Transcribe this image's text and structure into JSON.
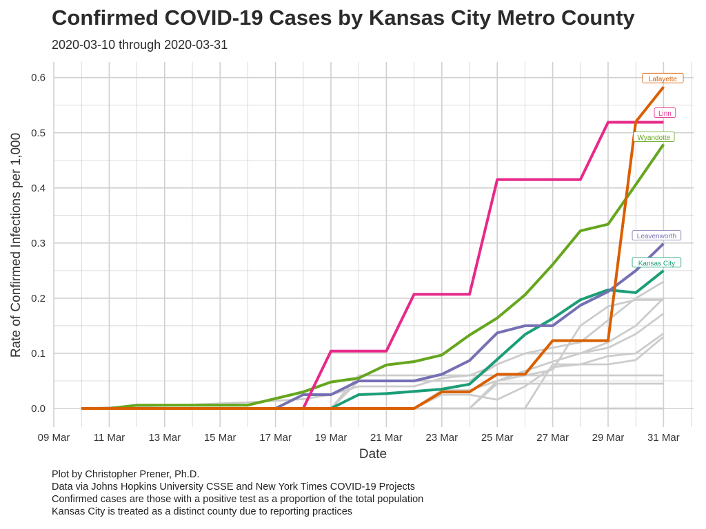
{
  "title": "Confirmed COVID-19 Cases by Kansas City Metro County",
  "subtitle": "2020-03-10 through 2020-03-31",
  "caption": [
    "Plot by Christopher Prener, Ph.D.",
    "Data via Johns Hopkins University CSSE and New York Times COVID-19 Projects",
    "Confirmed cases are those with a positive test as a proportion of the total population",
    "Kansas City is treated as a distinct county due to reporting practices"
  ],
  "chart_data": {
    "type": "line",
    "xlabel": "Date",
    "ylabel": "Rate of Confirmed Infections per 1,000",
    "x_tick_labels": [
      "09 Mar",
      "11 Mar",
      "13 Mar",
      "15 Mar",
      "17 Mar",
      "19 Mar",
      "21 Mar",
      "23 Mar",
      "25 Mar",
      "27 Mar",
      "29 Mar",
      "31 Mar"
    ],
    "y_tick_labels": [
      "0.0",
      "0.1",
      "0.2",
      "0.3",
      "0.4",
      "0.5",
      "0.6"
    ],
    "xlim": [
      "2020-03-09",
      "2020-03-31"
    ],
    "ylim": [
      0,
      0.6
    ],
    "grid": true,
    "legend": "direct labels at line ends",
    "x": [
      "2020-03-10",
      "2020-03-11",
      "2020-03-12",
      "2020-03-13",
      "2020-03-14",
      "2020-03-15",
      "2020-03-16",
      "2020-03-17",
      "2020-03-18",
      "2020-03-19",
      "2020-03-20",
      "2020-03-21",
      "2020-03-22",
      "2020-03-23",
      "2020-03-24",
      "2020-03-25",
      "2020-03-26",
      "2020-03-27",
      "2020-03-28",
      "2020-03-29",
      "2020-03-30",
      "2020-03-31"
    ],
    "series": [
      {
        "name": "Lafayette",
        "color": "#d95f02",
        "values": [
          0,
          0,
          0,
          0,
          0,
          0,
          0,
          0,
          0,
          0,
          0,
          0,
          0,
          0.03,
          0.03,
          0.062,
          0.062,
          0.123,
          0.123,
          0.123,
          0.52,
          0.583
        ]
      },
      {
        "name": "Linn",
        "color": "#e7298a",
        "values": [
          0,
          0,
          0,
          0,
          0,
          0,
          0,
          0,
          0,
          0.104,
          0.104,
          0.104,
          0.207,
          0.207,
          0.207,
          0.415,
          0.415,
          0.415,
          0.415,
          0.519,
          0.519,
          0.519
        ]
      },
      {
        "name": "Wyandotte",
        "color": "#66a61e",
        "values": [
          0,
          0,
          0.006,
          0.006,
          0.006,
          0.006,
          0.006,
          0.018,
          0.03,
          0.048,
          0.055,
          0.079,
          0.085,
          0.097,
          0.133,
          0.164,
          0.206,
          0.261,
          0.322,
          0.334,
          0.406,
          0.479
        ]
      },
      {
        "name": "Leavenworth",
        "color": "#7570b3",
        "values": [
          0,
          0,
          0,
          0,
          0,
          0,
          0,
          0,
          0.025,
          0.025,
          0.05,
          0.05,
          0.05,
          0.062,
          0.087,
          0.137,
          0.15,
          0.15,
          0.187,
          0.212,
          0.25,
          0.299
        ]
      },
      {
        "name": "Kansas City",
        "color": "#1b9e77",
        "values": [
          0,
          0,
          0,
          0,
          0,
          0,
          0,
          0,
          0,
          0,
          0.025,
          0.027,
          0.031,
          0.035,
          0.044,
          0.089,
          0.134,
          0.163,
          0.197,
          0.215,
          0.21,
          0.25
        ]
      },
      {
        "color": "#cccccc",
        "values": [
          0,
          0,
          0,
          0,
          0,
          0,
          0,
          0,
          0,
          0,
          0,
          0,
          0,
          0,
          0,
          0,
          0,
          0,
          0,
          0,
          0,
          0
        ]
      },
      {
        "color": "#cccccc",
        "values": [
          0,
          0,
          0,
          0,
          0,
          0,
          0,
          0,
          0,
          0,
          0,
          0,
          0,
          0,
          0,
          0.045,
          0.045,
          0.045,
          0.045,
          0.045,
          0.045,
          0.045
        ]
      },
      {
        "color": "#cccccc",
        "values": [
          0,
          0,
          0,
          0,
          0,
          0,
          0,
          0,
          0,
          0,
          0.06,
          0.06,
          0.06,
          0.06,
          0.06,
          0.06,
          0.06,
          0.06,
          0.06,
          0.06,
          0.06,
          0.06
        ]
      },
      {
        "color": "#cccccc",
        "values": [
          0,
          0,
          0,
          0,
          0,
          0,
          0,
          0,
          0,
          0,
          0,
          0,
          0,
          0,
          0,
          0,
          0,
          0.08,
          0.08,
          0.08,
          0.088,
          0.13
        ]
      },
      {
        "color": "#cccccc",
        "values": [
          0,
          0,
          0,
          0,
          0,
          0,
          0,
          0,
          0,
          0,
          0,
          0,
          0,
          0.025,
          0.025,
          0.016,
          0.04,
          0.075,
          0.08,
          0.095,
          0.1,
          0.136
        ]
      },
      {
        "color": "#cccccc",
        "values": [
          0,
          0,
          0,
          0,
          0,
          0,
          0,
          0,
          0,
          0,
          0,
          0,
          0,
          0.033,
          0.033,
          0.05,
          0.068,
          0.085,
          0.1,
          0.11,
          0.135,
          0.172
        ]
      },
      {
        "color": "#cccccc",
        "values": [
          0,
          0,
          0,
          0,
          0,
          0,
          0,
          0,
          0,
          0,
          0.05,
          0.05,
          0.05,
          0.05,
          0.05,
          0.08,
          0.1,
          0.1,
          0.1,
          0.12,
          0.15,
          0.2
        ]
      },
      {
        "color": "#cccccc",
        "values": [
          0,
          0,
          0,
          0,
          0,
          0,
          0,
          0,
          0,
          0,
          0,
          0,
          0,
          0,
          0,
          0.05,
          0.06,
          0.07,
          0.15,
          0.185,
          0.197,
          0.197
        ]
      },
      {
        "color": "#cccccc",
        "values": [
          0,
          0.002,
          0.004,
          0.005,
          0.007,
          0.009,
          0.011,
          0.014,
          0.017,
          0.025,
          0.04,
          0.04,
          0.04,
          0.055,
          0.06,
          0.08,
          0.1,
          0.11,
          0.12,
          0.16,
          0.2,
          0.23
        ]
      }
    ]
  }
}
